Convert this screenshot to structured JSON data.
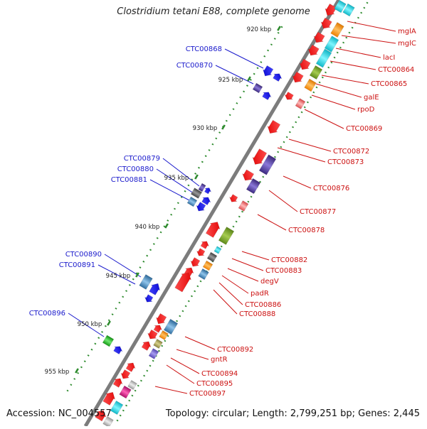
{
  "title": "Clostridium tetani E88, complete genome",
  "footer": {
    "accession": "Accession: NC_004557",
    "summary": "Topology: circular; Length: 2,799,251 bp; Genes: 2,445"
  },
  "colors": {
    "backbone": "#8a8a8a",
    "tick": "#2e8b2e",
    "left_label": "#1a1acc",
    "right_label": "#cc1111",
    "kbp_text": "#222222",
    "gene_red": "#ee1111",
    "gene_blue": "#1111ee"
  },
  "kbp_marks": [
    "920 kbp",
    "925 kbp",
    "930 kbp",
    "935 kbp",
    "940 kbp",
    "945 kbp",
    "950 kbp",
    "955 kbp"
  ],
  "left_labels": [
    "CTC00868",
    "CTC00870",
    "CTC00879",
    "CTC00880",
    "CTC00881",
    "CTC00890",
    "CTC00891",
    "CTC00896"
  ],
  "right_labels": [
    "mglA",
    "mglC",
    "lacI",
    "CTC00864",
    "CTC00865",
    "galE",
    "rpoD",
    "CTC00869",
    "CTC00872",
    "CTC00873",
    "CTC00876",
    "CTC00877",
    "CTC00878",
    "CTC00882",
    "CTC00883",
    "degV",
    "padR",
    "CTC00886",
    "CTC00888",
    "CTC00892",
    "gntR",
    "CTC00894",
    "CTC00895",
    "CTC00897"
  ]
}
